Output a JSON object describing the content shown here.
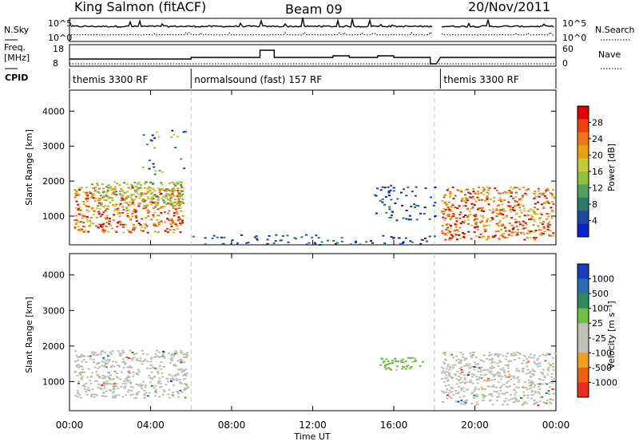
{
  "header": {
    "station": "King Salmon (fitACF)",
    "beam": "Beam 09",
    "date": "20/Nov/2011"
  },
  "aux_labels": {
    "nsky": "N.Sky",
    "freq_top": "Freq.",
    "freq_unit": "[MHz]",
    "cpid": "CPID",
    "nsearch": "N.Search",
    "nave": "Nave",
    "nsky_ticks": [
      "10^5",
      "10^0"
    ],
    "nsearch_ticks": [
      "10^5",
      "10^0"
    ],
    "freq_ticks": [
      "18",
      "8"
    ],
    "nave_ticks": [
      "60",
      "0"
    ]
  },
  "cpid_segments": [
    {
      "label": "themis 3300 RF",
      "start": 0,
      "end": 6
    },
    {
      "label": "normalsound (fast) 157 RF",
      "start": 6,
      "end": 18
    },
    {
      "label": "themis 3300 RF",
      "start": 18.3,
      "end": 24
    }
  ],
  "colorbars": {
    "power": {
      "title": "Power [dB]",
      "ticks": [
        "28",
        "24",
        "20",
        "16",
        "12",
        "8",
        "4"
      ],
      "colors": [
        "#e00000",
        "#f04010",
        "#f07818",
        "#e8a010",
        "#c8c838",
        "#90c040",
        "#50a060",
        "#2a7a6a",
        "#1a4aa0",
        "#0a20d0"
      ]
    },
    "velocity": {
      "title": "Velocity [m s⁻¹]",
      "ticks": [
        "1000",
        "500",
        "100",
        "25",
        "-25",
        "-100",
        "-500",
        "-1000"
      ],
      "colors": [
        "#1a3cc0",
        "#2a6ab0",
        "#2e8a5a",
        "#70c040",
        "#c0c0b8",
        "#c0c0b8",
        "#f0a020",
        "#f06010",
        "#e83020"
      ]
    }
  },
  "chart_data": [
    {
      "type": "heatmap",
      "panel": "power",
      "ylabel": "Slant Range [km]",
      "xlabel": "Time UT",
      "x_ticks": [
        "00:00",
        "04:00",
        "08:00",
        "12:00",
        "16:00",
        "20:00",
        "00:00"
      ],
      "y_ticks": [
        1000,
        2000,
        3000,
        4000
      ],
      "xlim": [
        0,
        24
      ],
      "ylim": [
        180,
        4600
      ],
      "regions": [
        {
          "x0": 0.2,
          "x1": 5.6,
          "y0": 550,
          "y1": 1850,
          "level": "high"
        },
        {
          "x0": 1.0,
          "x1": 5.6,
          "y0": 1300,
          "y1": 2000,
          "level": "mid"
        },
        {
          "x0": 3.5,
          "x1": 5.8,
          "y0": 2200,
          "y1": 3500,
          "level": "scatter"
        },
        {
          "x0": 6.0,
          "x1": 18.0,
          "y0": 200,
          "y1": 500,
          "level": "low"
        },
        {
          "x0": 15.0,
          "x1": 18.0,
          "y0": 900,
          "y1": 1900,
          "level": "low"
        },
        {
          "x0": 18.3,
          "x1": 23.9,
          "y0": 350,
          "y1": 1850,
          "level": "high"
        }
      ]
    },
    {
      "type": "heatmap",
      "panel": "velocity",
      "ylabel": "Slant Range [km]",
      "xlabel": "Time UT",
      "x_ticks": [
        "00:00",
        "04:00",
        "08:00",
        "12:00",
        "16:00",
        "20:00",
        "00:00"
      ],
      "y_ticks": [
        1000,
        2000,
        3000,
        4000
      ],
      "xlim": [
        0,
        24
      ],
      "ylim": [
        180,
        4600
      ],
      "regions": [
        {
          "x0": 0.2,
          "x1": 5.8,
          "y0": 550,
          "y1": 1900,
          "level": "near-zero"
        },
        {
          "x0": 15.3,
          "x1": 17.6,
          "y0": 1350,
          "y1": 1700,
          "level": "positive"
        },
        {
          "x0": 18.3,
          "x1": 23.9,
          "y0": 350,
          "y1": 1850,
          "level": "near-zero"
        }
      ]
    }
  ]
}
